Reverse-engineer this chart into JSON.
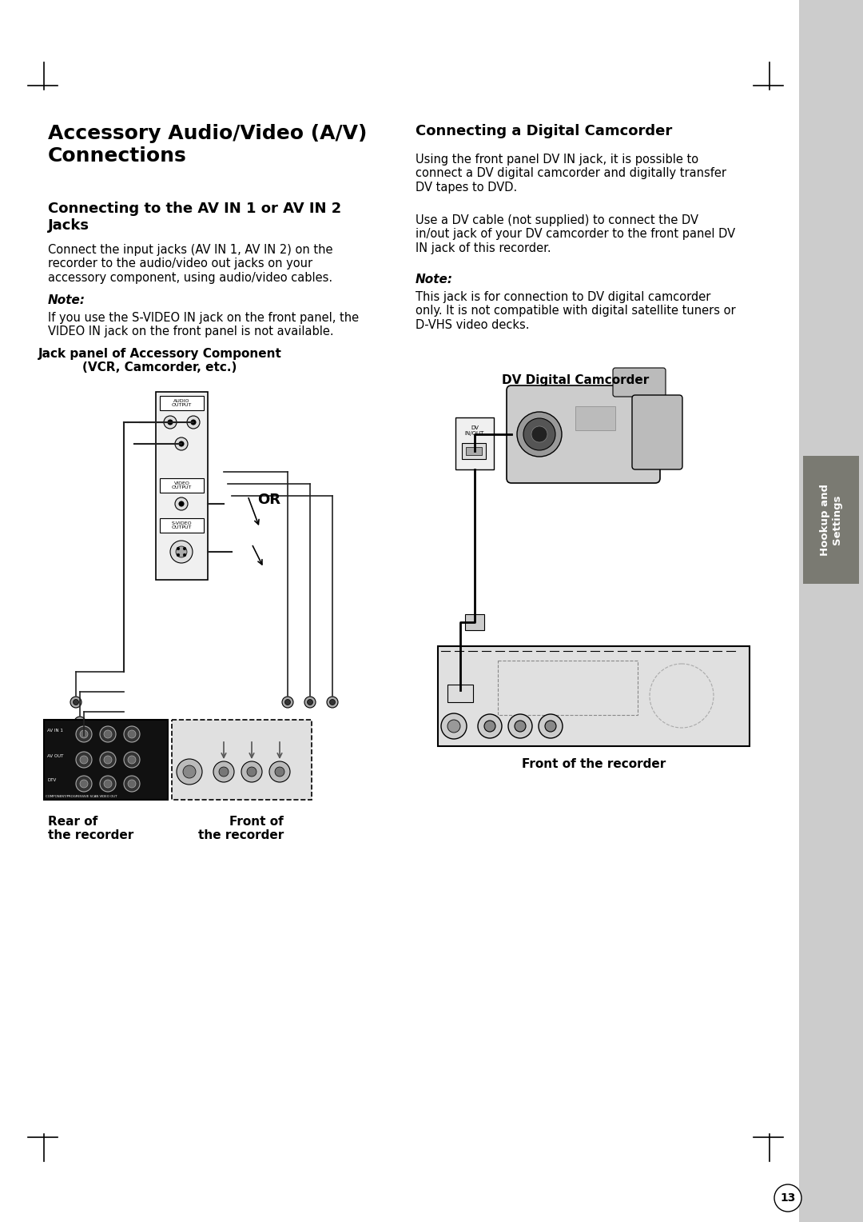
{
  "page_bg": "#ffffff",
  "sidebar_bg": "#cccccc",
  "sidebar_dark_bg": "#7a7a72",
  "sidebar_label": "Hookup and\nSettings",
  "sidebar_label_color": "#ffffff",
  "main_title": "Accessory Audio/Video (A/V)\nConnections",
  "section1_title": "Connecting to the AV IN 1 or AV IN 2\nJacks",
  "section1_body": "Connect the input jacks (AV IN 1, AV IN 2) on the\nrecorder to the audio/video out jacks on your\naccessory component, using audio/video cables.",
  "note1_title": "Note:",
  "note1_body": "If you use the S-VIDEO IN jack on the front panel, the\nVIDEO IN jack on the front panel is not available.",
  "section2_title": "Connecting a Digital Camcorder",
  "section2_body1": "Using the front panel DV IN jack, it is possible to\nconnect a DV digital camcorder and digitally transfer\nDV tapes to DVD.",
  "section2_body2": "Use a DV cable (not supplied) to connect the DV\nin/out jack of your DV camcorder to the front panel DV\nIN jack of this recorder.",
  "note2_title": "Note:",
  "note2_body": "This jack is for connection to DV digital camcorder\nonly. It is not compatible with digital satellite tuners or\nD-VHS video decks.",
  "diagram1_title": "Jack panel of Accessory Component\n(VCR, Camcorder, etc.)",
  "diagram2_title": "DV Digital Camcorder",
  "label_rear": "Rear of\nthe recorder",
  "label_front_left": "Front of\nthe recorder",
  "label_front_right": "Front of the recorder",
  "page_number": "13",
  "text_color": "#000000",
  "title_fontsize": 18,
  "subtitle_fontsize": 13,
  "body_fontsize": 10.5,
  "note_title_fontsize": 11,
  "diagram_title_fontsize": 11
}
